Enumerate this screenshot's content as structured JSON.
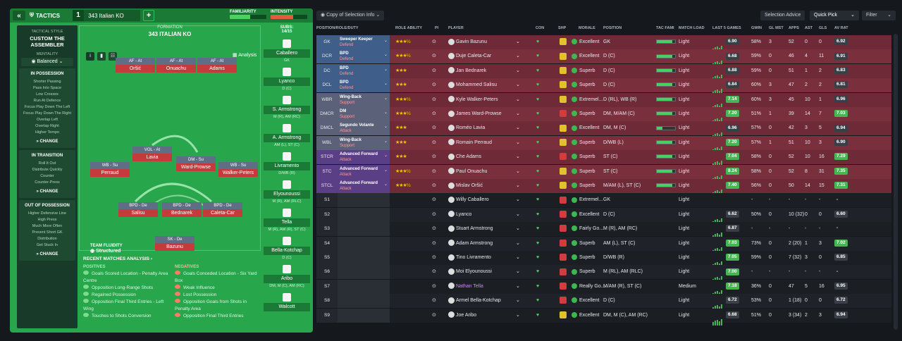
{
  "tactics": {
    "section": "TACTICS",
    "tactic_num": "1",
    "tactic_name": "343 Italian KO",
    "familiarity_label": "FAMILIARITY",
    "intensity_label": "INTENSITY",
    "familiarity_val": 0.55,
    "intensity_val": 0.62
  },
  "sidebar": {
    "style_label": "TACTICAL STYLE",
    "style_name": "CUSTOM THE ASSEMBLER",
    "mentality_label": "MENTALITY",
    "mentality": "Balanced",
    "in_possession": {
      "title": "IN POSSESSION",
      "items": [
        "Shorter Passing",
        "Pass Into Space",
        "Low Crosses",
        "Run At Defence",
        "Focus Play Down The Left",
        "Focus Play Down The Right",
        "Overlap Left",
        "Overlap Right",
        "Higher Tempo"
      ],
      "change": "CHANGE"
    },
    "in_transition": {
      "title": "IN TRANSITION",
      "items": [
        "Roll It Out",
        "Distribute Quickly",
        "Counter",
        "Counter-Press"
      ],
      "change": "CHANGE"
    },
    "out_possession": {
      "title": "OUT OF POSSESSION",
      "items": [
        "Higher Defensive Line",
        "High Press",
        "Much More Often",
        "Prevent Short GK",
        "Distribution",
        "Get Stuck In"
      ],
      "change": "CHANGE"
    }
  },
  "formation": {
    "label": "FORMATION",
    "name": "343 ITALIAN KO",
    "subs_label": "SUBS:",
    "subs_count": "14/15",
    "analysis": "Analysis",
    "fluidity_label": "TEAM FLUIDITY",
    "fluidity": "Structured",
    "players": [
      {
        "role": "AF - At",
        "name": "Oršić"
      },
      {
        "role": "AF - At",
        "name": "Onuachu"
      },
      {
        "role": "AF - At",
        "name": "Adams"
      },
      {
        "role": "VOL - At",
        "name": "Lavia"
      },
      {
        "role": "DM - Su",
        "name": "Ward-Prowse"
      },
      {
        "role": "WB - Su",
        "name": "Perraud"
      },
      {
        "role": "WB - Su",
        "name": "Walker-Peters"
      },
      {
        "role": "BPD - De",
        "name": "Salisu"
      },
      {
        "role": "BPD - De",
        "name": "Bednarek"
      },
      {
        "role": "BPD - De",
        "name": "Caleta-Car"
      },
      {
        "role": "SK - De",
        "name": "Bazunu"
      }
    ]
  },
  "subs": [
    {
      "num": "13",
      "name": "Caballero",
      "pos": "GK"
    },
    {
      "num": "",
      "name": "Lyanco",
      "pos": "D (C)"
    },
    {
      "num": "17",
      "name": "S. Armstrong",
      "pos": "M (R), AM (RC)"
    },
    {
      "num": "9",
      "name": "A. Armstrong",
      "pos": "AM (L), ST (C)"
    },
    {
      "num": "21",
      "name": "Livramento",
      "pos": "D/WB (R)"
    },
    {
      "num": "24",
      "name": "Elyounoussi",
      "pos": "M (R), AM (RLC)"
    },
    {
      "num": "",
      "name": "Tella",
      "pos": "M (R), AM (R), ST (C)"
    },
    {
      "num": "",
      "name": "Bella-Kotchap",
      "pos": "D (C)"
    },
    {
      "num": "",
      "name": "Aribo",
      "pos": "DM, M (C), AM (RC)"
    },
    {
      "num": "",
      "name": "Walcott",
      "pos": ""
    }
  ],
  "recent": {
    "title": "RECENT MATCHES ANALYSIS",
    "pos_label": "POSITIVES",
    "neg_label": "NEGATIVES",
    "positives": [
      "Goals Scored Location - Penalty Area Centre",
      "Opposition Long-Range Shots",
      "Regained Possession",
      "Opposition Final Third Entries - Left Wing",
      "Touches to Shots Conversion"
    ],
    "negatives": [
      "Goals Conceded Location - Six Yard Box",
      "Weak Influence",
      "Lost Possession",
      "Opposition Goals from Shots in Penalty Area",
      "Opposition Final Third Entries"
    ]
  },
  "toolbar": {
    "view": "Copy of Selection Info",
    "advice": "Selection Advice",
    "quick_pick": "Quick Pick",
    "filter": "Filter"
  },
  "columns": [
    "POSITION/ROLE/DUTY",
    "ROLE ABILITY",
    "PI",
    "PLAYER",
    "CON",
    "SHP",
    "MORALE",
    "POSITION",
    "TAC FAMI",
    "MATCH LOAD",
    "LAST 5 GAMES",
    "GWIN",
    "GL MST",
    "APPS",
    "AST",
    "GLS",
    "AV RAT"
  ],
  "rows": [
    {
      "pos": "GK",
      "role": "Sweeper Keeper",
      "duty": "Defend",
      "stars": "★★★½",
      "player": "Gavin Bazunu",
      "morale": "Excellent",
      "position": "GK",
      "load": "Light",
      "rat": "6.90",
      "gwin": "58%",
      "glm": "3",
      "apps": "52",
      "ast": "0",
      "gls": "0",
      "avr": "6.92",
      "tac": 0.85,
      "grp": "def"
    },
    {
      "pos": "DCR",
      "role": "BPD",
      "duty": "Defend",
      "stars": "★★★½",
      "player": "Duje Caleta-Car",
      "morale": "Excellent",
      "position": "D (C)",
      "load": "Light",
      "rat": "6.68",
      "gwin": "59%",
      "glm": "0",
      "apps": "46",
      "ast": "4",
      "gls": "11",
      "avr": "6.91",
      "tac": 0.85,
      "grp": "def"
    },
    {
      "pos": "DC",
      "role": "BPD",
      "duty": "Defend",
      "stars": "★★★",
      "player": "Jan Bednarek",
      "morale": "Superb",
      "position": "D (C)",
      "load": "Light",
      "rat": "6.88",
      "gwin": "59%",
      "glm": "0",
      "apps": "51",
      "ast": "1",
      "gls": "2",
      "avr": "6.83",
      "tac": 0.85,
      "grp": "def"
    },
    {
      "pos": "DCL",
      "role": "BPD",
      "duty": "Defend",
      "stars": "★★★",
      "player": "Mohammed Salisu",
      "morale": "Superb",
      "position": "D (C)",
      "load": "Light",
      "rat": "6.84",
      "gwin": "60%",
      "glm": "3",
      "apps": "47",
      "ast": "2",
      "gls": "2",
      "avr": "6.81",
      "tac": 0.85,
      "grp": "def"
    },
    {
      "pos": "WBR",
      "role": "Wing-Back",
      "duty": "Support",
      "stars": "★★★½",
      "player": "Kyle Walker-Peters",
      "morale": "Extremel...",
      "position": "D (RL), WB (R)",
      "load": "Light",
      "rat": "7.14",
      "gwin": "60%",
      "glm": "3",
      "apps": "45",
      "ast": "10",
      "gls": "1",
      "avr": "6.96",
      "tac": 0.85,
      "grp": "mid"
    },
    {
      "pos": "DMCR",
      "role": "DM",
      "duty": "Support",
      "stars": "★★★½",
      "player": "James Ward-Prowse",
      "morale": "Superb",
      "position": "DM, M/AM (C)",
      "load": "Light",
      "rat": "7.20",
      "gwin": "51%",
      "glm": "1",
      "apps": "39",
      "ast": "14",
      "gls": "7",
      "avr": "7.03",
      "tac": 0.85,
      "grp": "mid"
    },
    {
      "pos": "DMCL",
      "role": "Segundo Volante",
      "duty": "Attack",
      "stars": "★★★",
      "player": "Roméo Lavia",
      "morale": "Excellent",
      "position": "DM, M (C)",
      "load": "Light",
      "rat": "6.96",
      "gwin": "57%",
      "glm": "0",
      "apps": "42",
      "ast": "3",
      "gls": "5",
      "avr": "6.94",
      "tac": 0.3,
      "grp": "mid"
    },
    {
      "pos": "WBL",
      "role": "Wing-Back",
      "duty": "Support",
      "stars": "★★★",
      "player": "Romain Perraud",
      "morale": "Superb",
      "position": "D/WB (L)",
      "load": "Light",
      "rat": "7.20",
      "gwin": "57%",
      "glm": "1",
      "apps": "51",
      "ast": "10",
      "gls": "3",
      "avr": "6.90",
      "tac": 0.85,
      "grp": "mid"
    },
    {
      "pos": "STCR",
      "role": "Advanced Forward",
      "duty": "Attack",
      "stars": "★★★",
      "player": "Che Adams",
      "morale": "Superb",
      "position": "ST (C)",
      "load": "Light",
      "rat": "7.04",
      "gwin": "58%",
      "glm": "0",
      "apps": "52",
      "ast": "10",
      "gls": "16",
      "avr": "7.29",
      "tac": 0.85,
      "grp": "att"
    },
    {
      "pos": "STC",
      "role": "Advanced Forward",
      "duty": "Attack",
      "stars": "★★★½",
      "player": "Paul Onuachu",
      "morale": "Superb",
      "position": "ST (C)",
      "load": "Light",
      "rat": "8.24",
      "gwin": "58%",
      "glm": "0",
      "apps": "52",
      "ast": "8",
      "gls": "31",
      "avr": "7.35",
      "tac": 0.85,
      "grp": "att"
    },
    {
      "pos": "STCL",
      "role": "Advanced Forward",
      "duty": "Attack",
      "stars": "★★★½",
      "player": "Mislav Oršić",
      "morale": "Superb",
      "position": "M/AM (L), ST (C)",
      "load": "Light",
      "rat": "7.40",
      "gwin": "56%",
      "glm": "0",
      "apps": "50",
      "ast": "14",
      "gls": "15",
      "avr": "7.31",
      "tac": 0.85,
      "grp": "att"
    },
    {
      "pos": "S1",
      "player": "Willy Caballero",
      "morale": "Extremel...",
      "position": "GK",
      "load": "Light",
      "rat": "",
      "gwin": "-",
      "glm": "-",
      "apps": "-",
      "ast": "-",
      "gls": "-",
      "avr": "-",
      "grp": "sub"
    },
    {
      "pos": "S2",
      "player": "Lyanco",
      "morale": "Excellent",
      "position": "D (C)",
      "load": "Light",
      "rat": "6.62",
      "gwin": "50%",
      "glm": "0",
      "apps": "10 (32)",
      "ast": "0",
      "gls": "0",
      "avr": "6.60",
      "grp": "sub"
    },
    {
      "pos": "S3",
      "player": "Stuart Armstrong",
      "morale": "Fairly Go...",
      "position": "M (R), AM (RC)",
      "load": "Light",
      "rat": "6.87",
      "gwin": "-",
      "glm": "-",
      "apps": "-",
      "ast": "-",
      "gls": "-",
      "avr": "-",
      "grp": "sub"
    },
    {
      "pos": "S4",
      "player": "Adam Armstrong",
      "morale": "Superb",
      "position": "AM (L), ST (C)",
      "load": "Light",
      "rat": "7.03",
      "gwin": "73%",
      "glm": "0",
      "apps": "2 (20)",
      "ast": "1",
      "gls": "3",
      "avr": "7.02",
      "grp": "sub"
    },
    {
      "pos": "S5",
      "player": "Tino Livramento",
      "morale": "Superb",
      "position": "D/WB (R)",
      "load": "Light",
      "rat": "7.05",
      "gwin": "59%",
      "glm": "0",
      "apps": "7 (32)",
      "ast": "3",
      "gls": "0",
      "avr": "6.85",
      "grp": "sub"
    },
    {
      "pos": "S6",
      "player": "Moi Elyounoussi",
      "morale": "Superb",
      "position": "M (RL), AM (RLC)",
      "load": "Light",
      "rat": "7.00",
      "gwin": "-",
      "glm": "-",
      "apps": "-",
      "ast": "-",
      "gls": "-",
      "avr": "-",
      "grp": "sub"
    },
    {
      "pos": "S7",
      "player": "Nathan Tella",
      "morale": "Really Go...",
      "position": "M/AM (R), ST (C)",
      "load": "Medium",
      "rat": "7.18",
      "gwin": "36%",
      "glm": "0",
      "apps": "47",
      "ast": "5",
      "gls": "16",
      "avr": "6.95",
      "grp": "sub"
    },
    {
      "pos": "S8",
      "player": "Armel Bella-Kotchap",
      "morale": "Excellent",
      "position": "D (C)",
      "load": "Light",
      "rat": "6.72",
      "gwin": "53%",
      "glm": "0",
      "apps": "1 (18)",
      "ast": "0",
      "gls": "0",
      "avr": "6.72",
      "grp": "sub"
    },
    {
      "pos": "S9",
      "player": "Joe Aribo",
      "morale": "Excellent",
      "position": "DM, M (C), AM (RC)",
      "load": "Light",
      "rat": "6.68",
      "gwin": "51%",
      "glm": "0",
      "apps": "3 (34)",
      "ast": "2",
      "gls": "3",
      "avr": "6.94",
      "grp": "sub"
    }
  ],
  "colors": {
    "def": "#7a2f3d",
    "mid": "#2f3f66",
    "att": "#4c3470",
    "sub": "#1b1e23",
    "green": "#27a64b"
  }
}
